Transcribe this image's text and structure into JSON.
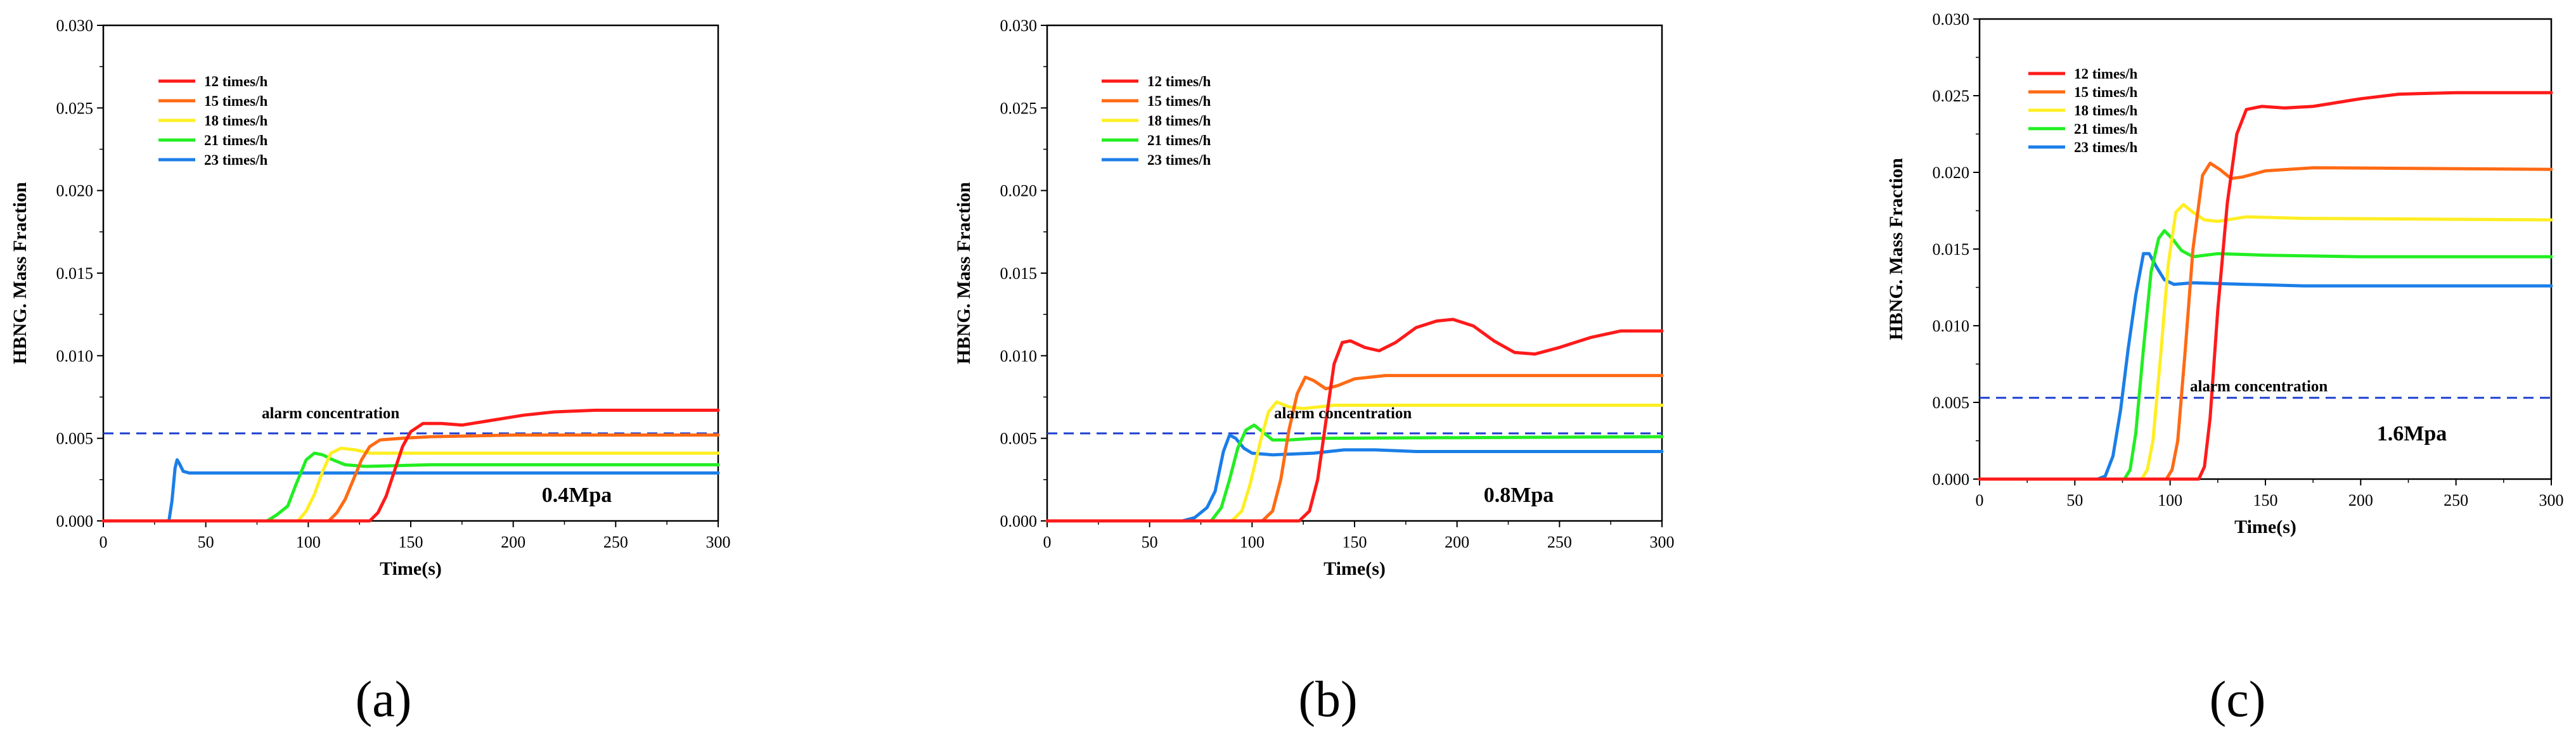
{
  "figure": {
    "series_names": [
      "12 times/h",
      "15 times/h",
      "18 times/h",
      "21 times/h",
      "23 times/h"
    ],
    "series_colors": [
      "#ff1a1a",
      "#ff6a14",
      "#ffee22",
      "#22ee22",
      "#1a7ee8"
    ],
    "alarm_color": "#1f3fd0",
    "xlabel": "Time(s)",
    "ylabel": "HBNG. Mass Fraction",
    "x_ticks": [
      "0",
      "50",
      "100",
      "150",
      "200",
      "250",
      "300"
    ],
    "y_ticks": [
      "0.000",
      "0.005",
      "0.010",
      "0.015",
      "0.020",
      "0.025",
      "0.030"
    ],
    "alarm_label": "alarm concentration"
  },
  "chart_data": [
    {
      "type": "line",
      "panel_label": "(a)",
      "pressure_label": "0.4Mpa",
      "xlabel": "Time(s)",
      "ylabel": "HBNG. Mass Fraction",
      "xlim": [
        0,
        300
      ],
      "ylim": [
        0,
        0.03
      ],
      "alarm_concentration": 0.0053,
      "series": [
        {
          "name": "12 times/h",
          "points": [
            [
              0,
              0
            ],
            [
              130,
              0
            ],
            [
              134,
              0.0005
            ],
            [
              138,
              0.0015
            ],
            [
              142,
              0.003
            ],
            [
              146,
              0.0045
            ],
            [
              150,
              0.0054
            ],
            [
              156,
              0.0059
            ],
            [
              165,
              0.0059
            ],
            [
              175,
              0.0058
            ],
            [
              190,
              0.0061
            ],
            [
              205,
              0.0064
            ],
            [
              220,
              0.0066
            ],
            [
              240,
              0.0067
            ],
            [
              270,
              0.0067
            ],
            [
              300,
              0.0067
            ]
          ]
        },
        {
          "name": "15 times/h",
          "points": [
            [
              0,
              0
            ],
            [
              110,
              0
            ],
            [
              114,
              0.0005
            ],
            [
              118,
              0.0013
            ],
            [
              122,
              0.0025
            ],
            [
              126,
              0.0037
            ],
            [
              130,
              0.0045
            ],
            [
              135,
              0.0049
            ],
            [
              145,
              0.005
            ],
            [
              160,
              0.0051
            ],
            [
              200,
              0.0052
            ],
            [
              300,
              0.0052
            ]
          ]
        },
        {
          "name": "18 times/h",
          "points": [
            [
              0,
              0
            ],
            [
              95,
              0
            ],
            [
              99,
              0.0006
            ],
            [
              103,
              0.0016
            ],
            [
              107,
              0.003
            ],
            [
              111,
              0.0041
            ],
            [
              116,
              0.0044
            ],
            [
              123,
              0.0043
            ],
            [
              130,
              0.0041
            ],
            [
              160,
              0.0041
            ],
            [
              300,
              0.0041
            ]
          ]
        },
        {
          "name": "21 times/h",
          "points": [
            [
              0,
              0
            ],
            [
              80,
              0
            ],
            [
              85,
              0.0004
            ],
            [
              90,
              0.0009
            ],
            [
              94,
              0.0022
            ],
            [
              99,
              0.0037
            ],
            [
              103,
              0.0041
            ],
            [
              107,
              0.004
            ],
            [
              112,
              0.0037
            ],
            [
              118,
              0.0034
            ],
            [
              128,
              0.0033
            ],
            [
              160,
              0.0034
            ],
            [
              300,
              0.0034
            ]
          ]
        },
        {
          "name": "23 times/h",
          "points": [
            [
              0,
              0
            ],
            [
              32,
              0
            ],
            [
              33.5,
              0.0012
            ],
            [
              35,
              0.0032
            ],
            [
              36,
              0.0037
            ],
            [
              37,
              0.0035
            ],
            [
              39,
              0.003
            ],
            [
              42,
              0.0029
            ],
            [
              60,
              0.0029
            ],
            [
              300,
              0.0029
            ]
          ]
        }
      ]
    },
    {
      "type": "line",
      "panel_label": "(b)",
      "pressure_label": "0.8Mpa",
      "xlabel": "Time(s)",
      "ylabel": "HBNG. Mass Fraction",
      "xlim": [
        0,
        300
      ],
      "ylim": [
        0,
        0.03
      ],
      "alarm_concentration": 0.0053,
      "series": [
        {
          "name": "12 times/h",
          "points": [
            [
              0,
              0
            ],
            [
              123,
              0
            ],
            [
              128,
              0.0006
            ],
            [
              132,
              0.0025
            ],
            [
              136,
              0.006
            ],
            [
              140,
              0.0095
            ],
            [
              144,
              0.0108
            ],
            [
              148,
              0.0109
            ],
            [
              155,
              0.0105
            ],
            [
              162,
              0.0103
            ],
            [
              170,
              0.0108
            ],
            [
              180,
              0.0117
            ],
            [
              190,
              0.0121
            ],
            [
              198,
              0.0122
            ],
            [
              208,
              0.0118
            ],
            [
              218,
              0.0109
            ],
            [
              228,
              0.0102
            ],
            [
              238,
              0.0101
            ],
            [
              250,
              0.0105
            ],
            [
              265,
              0.0111
            ],
            [
              280,
              0.0115
            ],
            [
              300,
              0.0115
            ]
          ]
        },
        {
          "name": "15 times/h",
          "points": [
            [
              0,
              0
            ],
            [
              105,
              0
            ],
            [
              110,
              0.0006
            ],
            [
              114,
              0.0025
            ],
            [
              118,
              0.0055
            ],
            [
              122,
              0.0077
            ],
            [
              126,
              0.0087
            ],
            [
              130,
              0.0085
            ],
            [
              136,
              0.008
            ],
            [
              142,
              0.0082
            ],
            [
              150,
              0.0086
            ],
            [
              165,
              0.0088
            ],
            [
              300,
              0.0088
            ]
          ]
        },
        {
          "name": "18 times/h",
          "points": [
            [
              0,
              0
            ],
            [
              90,
              0
            ],
            [
              95,
              0.0006
            ],
            [
              99,
              0.0022
            ],
            [
              104,
              0.0048
            ],
            [
              108,
              0.0066
            ],
            [
              112,
              0.0072
            ],
            [
              118,
              0.0069
            ],
            [
              125,
              0.0068
            ],
            [
              140,
              0.007
            ],
            [
              300,
              0.007
            ]
          ]
        },
        {
          "name": "21 times/h",
          "points": [
            [
              0,
              0
            ],
            [
              80,
              0
            ],
            [
              85,
              0.0008
            ],
            [
              89,
              0.0025
            ],
            [
              93,
              0.0044
            ],
            [
              97,
              0.0055
            ],
            [
              101,
              0.0058
            ],
            [
              105,
              0.0054
            ],
            [
              110,
              0.0049
            ],
            [
              118,
              0.0049
            ],
            [
              130,
              0.005
            ],
            [
              300,
              0.0051
            ]
          ]
        },
        {
          "name": "23 times/h",
          "points": [
            [
              0,
              0
            ],
            [
              66,
              0
            ],
            [
              72,
              0.0002
            ],
            [
              78,
              0.0008
            ],
            [
              82,
              0.0018
            ],
            [
              86,
              0.0042
            ],
            [
              89,
              0.0052
            ],
            [
              92,
              0.005
            ],
            [
              96,
              0.0044
            ],
            [
              100,
              0.0041
            ],
            [
              110,
              0.004
            ],
            [
              130,
              0.0041
            ],
            [
              145,
              0.0043
            ],
            [
              160,
              0.0043
            ],
            [
              180,
              0.0042
            ],
            [
              300,
              0.0042
            ]
          ]
        }
      ]
    },
    {
      "type": "line",
      "panel_label": "(c)",
      "pressure_label": "1.6Mpa",
      "xlabel": "Time(s)",
      "ylabel": "HBNG. Mass Fraction",
      "xlim": [
        0,
        300
      ],
      "ylim": [
        0,
        0.03
      ],
      "alarm_concentration": 0.0053,
      "series": [
        {
          "name": "12 times/h",
          "points": [
            [
              0,
              0
            ],
            [
              115,
              0
            ],
            [
              118,
              0.0008
            ],
            [
              121,
              0.004
            ],
            [
              125,
              0.011
            ],
            [
              130,
              0.018
            ],
            [
              135,
              0.0225
            ],
            [
              140,
              0.0241
            ],
            [
              148,
              0.0243
            ],
            [
              160,
              0.0242
            ],
            [
              175,
              0.0243
            ],
            [
              200,
              0.0248
            ],
            [
              220,
              0.0251
            ],
            [
              250,
              0.0252
            ],
            [
              300,
              0.0252
            ]
          ]
        },
        {
          "name": "15 times/h",
          "points": [
            [
              0,
              0
            ],
            [
              98,
              0
            ],
            [
              101,
              0.0006
            ],
            [
              104,
              0.0025
            ],
            [
              108,
              0.0085
            ],
            [
              112,
              0.015
            ],
            [
              117,
              0.0198
            ],
            [
              121,
              0.0206
            ],
            [
              126,
              0.0202
            ],
            [
              132,
              0.0196
            ],
            [
              138,
              0.0197
            ],
            [
              150,
              0.0201
            ],
            [
              175,
              0.0203
            ],
            [
              300,
              0.0202
            ]
          ]
        },
        {
          "name": "18 times/h",
          "points": [
            [
              0,
              0
            ],
            [
              85,
              0
            ],
            [
              88,
              0.0006
            ],
            [
              91,
              0.0025
            ],
            [
              95,
              0.008
            ],
            [
              99,
              0.014
            ],
            [
              103,
              0.0174
            ],
            [
              107,
              0.0179
            ],
            [
              112,
              0.0174
            ],
            [
              118,
              0.0169
            ],
            [
              125,
              0.0168
            ],
            [
              140,
              0.0171
            ],
            [
              170,
              0.017
            ],
            [
              300,
              0.0169
            ]
          ]
        },
        {
          "name": "21 times/h",
          "points": [
            [
              0,
              0
            ],
            [
              76,
              0
            ],
            [
              79,
              0.0006
            ],
            [
              82,
              0.003
            ],
            [
              86,
              0.0085
            ],
            [
              90,
              0.0135
            ],
            [
              94,
              0.0157
            ],
            [
              97,
              0.0162
            ],
            [
              101,
              0.0157
            ],
            [
              106,
              0.0149
            ],
            [
              112,
              0.0145
            ],
            [
              125,
              0.0147
            ],
            [
              150,
              0.0146
            ],
            [
              200,
              0.0145
            ],
            [
              300,
              0.0145
            ]
          ]
        },
        {
          "name": "23 times/h",
          "points": [
            [
              0,
              0
            ],
            [
              62,
              0
            ],
            [
              66,
              0.0002
            ],
            [
              70,
              0.0015
            ],
            [
              74,
              0.0045
            ],
            [
              78,
              0.0085
            ],
            [
              82,
              0.012
            ],
            [
              86,
              0.0147
            ],
            [
              89,
              0.0147
            ],
            [
              93,
              0.0138
            ],
            [
              97,
              0.013
            ],
            [
              102,
              0.0127
            ],
            [
              112,
              0.0128
            ],
            [
              140,
              0.0127
            ],
            [
              170,
              0.0126
            ],
            [
              300,
              0.0126
            ]
          ]
        }
      ]
    }
  ]
}
